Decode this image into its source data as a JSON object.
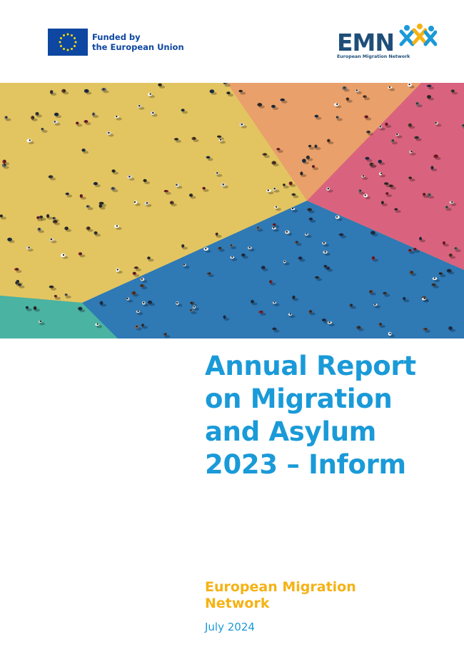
{
  "funding": {
    "line1": "Funded by",
    "line2": "the European Union",
    "flag_icon": "eu-flag-icon",
    "flag_color": "#0e47a1"
  },
  "emn_logo": {
    "letters": "EMN",
    "subtitle": "European Migration Network",
    "brand_color": "#1f4e79"
  },
  "cover": {
    "photo_description_icon": "aerial-crowd-photo",
    "title_lines": [
      "Annual Report",
      "on Migration",
      "and Asylum",
      "2023 – Inform"
    ],
    "publisher_lines": [
      "European Migration",
      "Network"
    ],
    "date": "July 2024"
  },
  "colors": {
    "title": "#1a9ad8",
    "publisher": "#f5b214",
    "date": "#1a9ad8",
    "yellow_area": "#e2c561",
    "orange_area": "#e9a06a",
    "pink_area": "#d9637e",
    "blue_area": "#2f79b5",
    "teal_area": "#4ab3a2"
  }
}
